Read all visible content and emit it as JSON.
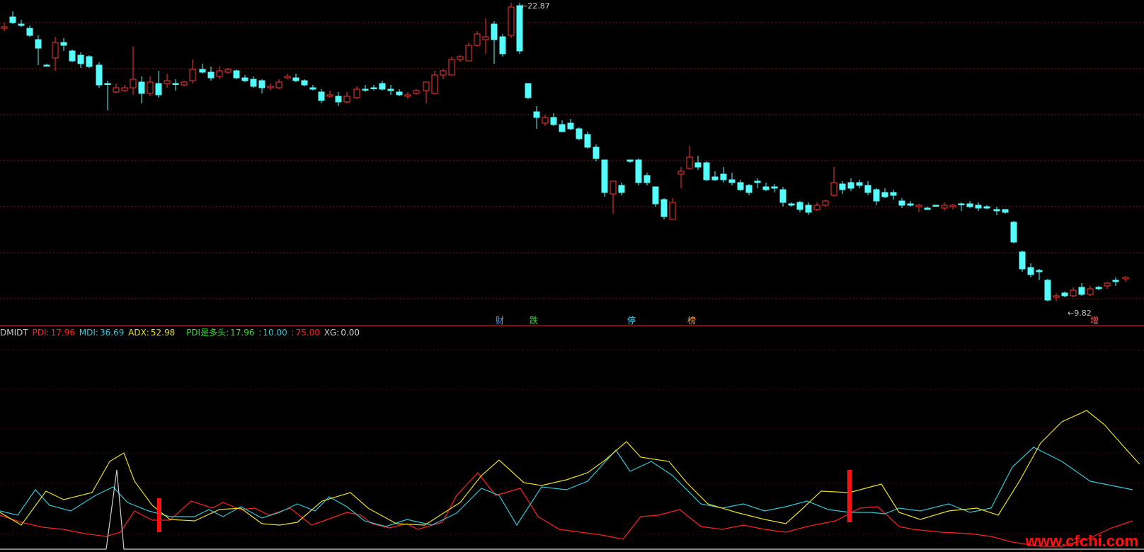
{
  "price_panel": {
    "high_label": "22.87",
    "low_label": "9.82",
    "event_markers": [
      {
        "text": "财",
        "color": "#4aa0ff"
      },
      {
        "text": "跌",
        "color": "#30e030"
      },
      {
        "text": "停",
        "color": "#40e0ff"
      },
      {
        "text": "榜",
        "color": "#ffa040"
      },
      {
        "text": "增",
        "color": "#ff6060"
      }
    ],
    "colors": {
      "up": "#ff3232",
      "down": "#54fcfc",
      "grid": "#8b1010",
      "divider": "#b41010"
    }
  },
  "indicator": {
    "name": "DMIDT",
    "pdi_label": "PDI:",
    "pdi_value": "17.96",
    "mdi_label": "MDI:",
    "mdi_value": "36.69",
    "adx_label": "ADX:",
    "adx_value": "52.98",
    "pdi_bull_label": "PDI是多头:",
    "pdi_bull_value": "17.96",
    "level1": "10.00",
    "level2": "75.00",
    "xg_label": "XG:",
    "xg_value": "0.00",
    "colors": {
      "pdi": "#ff2020",
      "mdi": "#30c8d8",
      "adx": "#e8e020",
      "pdi_bull": "#30e030",
      "xg": "#d0d0d0",
      "signal": "#ff1010"
    }
  },
  "watermark": "www.cfchi.com"
}
